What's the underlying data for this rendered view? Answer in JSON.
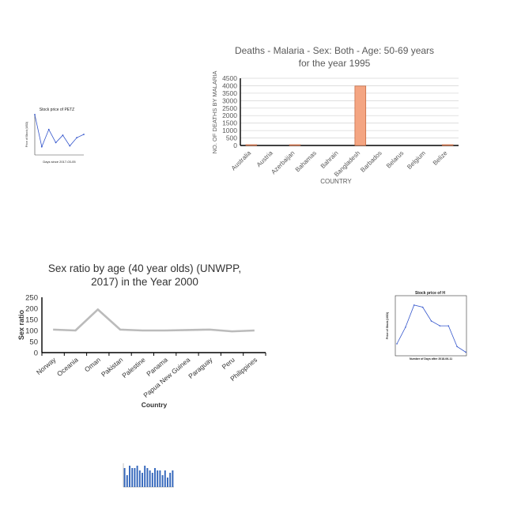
{
  "chart_data": [
    {
      "id": "petz",
      "type": "line",
      "title": "Stock price of PETZ",
      "xlabel": "Days since 2017-03-05",
      "ylabel": "Price of Stock (USD)",
      "x": [
        0,
        1,
        2,
        3,
        4,
        5,
        6,
        7
      ],
      "values": [
        98,
        20,
        62,
        30,
        48,
        22,
        42,
        50
      ],
      "ylim": [
        0,
        100
      ],
      "color": "#3355cc"
    },
    {
      "id": "malaria",
      "type": "bar",
      "title": "Deaths - Malaria - Sex: Both - Age: 50-69 years for the year 1995",
      "title_lines": [
        "Deaths - Malaria - Sex: Both - Age: 50-69 years",
        "for the year 1995"
      ],
      "xlabel": "COUNTRY",
      "ylabel": "NO. OF DEATHS BY MALARIA",
      "categories": [
        "Australia",
        "Austria",
        "Azerbaijan",
        "Bahamas",
        "Bahrain",
        "Bangladesh",
        "Barbados",
        "Belarus",
        "Belgium",
        "Belize"
      ],
      "values": [
        2,
        0,
        30,
        0,
        0,
        3980,
        0,
        0,
        0,
        5
      ],
      "yticks": [
        0,
        500,
        1000,
        1500,
        2000,
        2500,
        3000,
        3500,
        4000,
        4500
      ],
      "ylim": [
        0,
        4500
      ],
      "grid": true,
      "color": "#f4a582",
      "edge_color": "#c0623a"
    },
    {
      "id": "sexratio",
      "type": "line",
      "title": "Sex ratio by age (40 year olds) (UNWPP, 2017) in the Year 2000",
      "title_lines": [
        "Sex ratio by age (40 year olds) (UNWPP,",
        "2017) in the Year 2000"
      ],
      "xlabel": "Country",
      "ylabel": "Sex ratio",
      "categories": [
        "Norway",
        "Oceania",
        "Oman",
        "Pakistan",
        "Palestine",
        "Panama",
        "Papua New Guinea",
        "Paraguay",
        "Peru",
        "Philippines"
      ],
      "values": [
        104,
        100,
        195,
        104,
        100,
        100,
        102,
        104,
        96,
        100
      ],
      "yticks": [
        0,
        50,
        100,
        150,
        200,
        250
      ],
      "ylim": [
        0,
        250
      ],
      "grid": false,
      "color": "#bbbbbb"
    },
    {
      "id": "h",
      "type": "line",
      "title": "Stock price of H",
      "xlabel": "Number of Days after 2018-06-11",
      "ylabel": "Price of Stock (USD)",
      "x": [
        0,
        1,
        2,
        3,
        4,
        5,
        6,
        7,
        8
      ],
      "values": [
        91,
        93.4,
        96.6,
        96.3,
        94.3,
        93.6,
        93.6,
        90.6,
        89.8
      ],
      "ylim": [
        89.5,
        97.5
      ],
      "color": "#3355cc"
    },
    {
      "id": "tiny",
      "type": "bar",
      "values": [
        8,
        5,
        9,
        8,
        8,
        9,
        7,
        6,
        9,
        8,
        7,
        6,
        8,
        7,
        7,
        5,
        7,
        4,
        6,
        7
      ],
      "ylim": [
        0,
        10
      ],
      "color": "#3366bb"
    }
  ]
}
